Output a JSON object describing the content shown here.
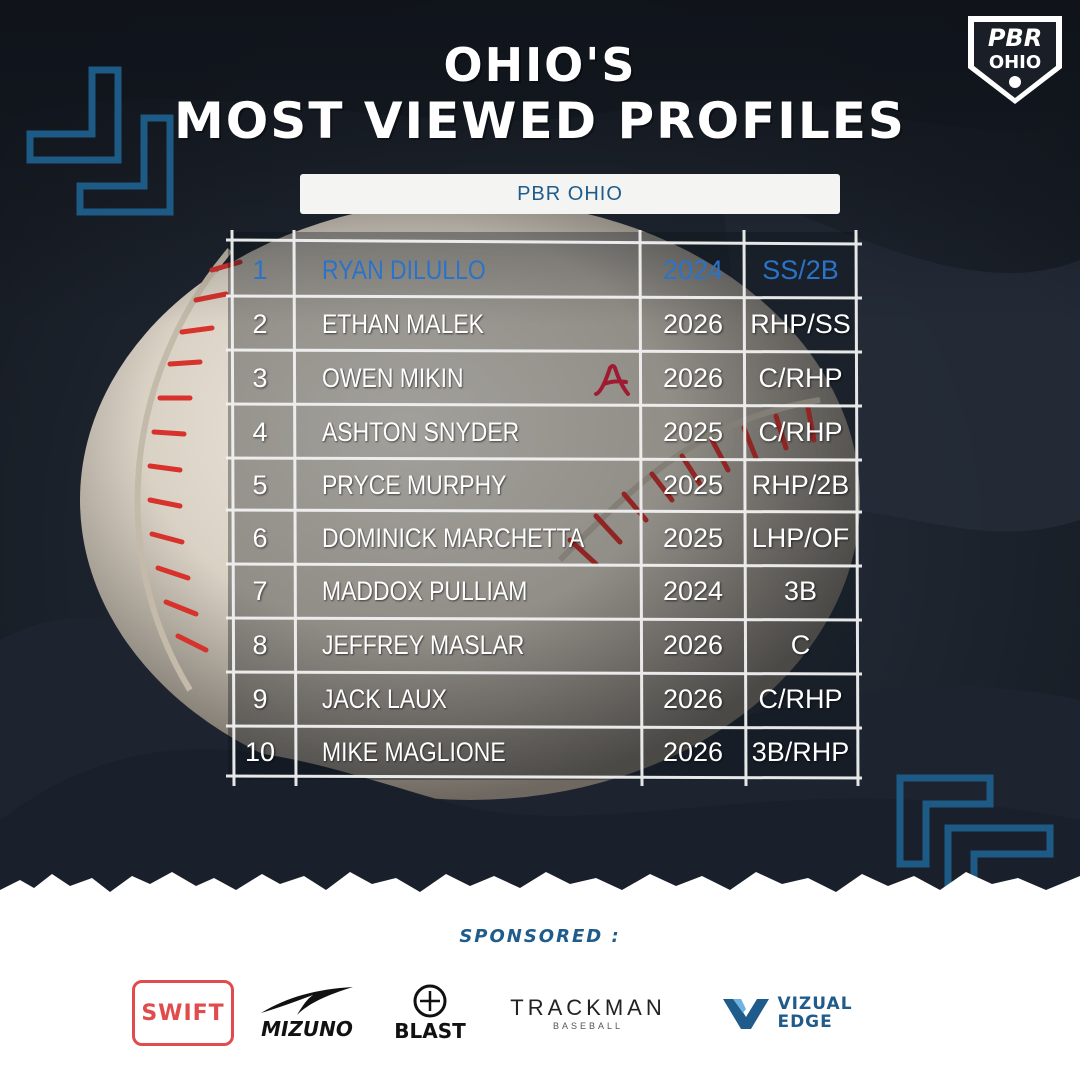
{
  "header": {
    "title_line1": "OHIO'S",
    "title_line2": "MOST VIEWED PROFILES",
    "subtitle": "PBR OHIO",
    "logo_top": "PBR",
    "logo_bottom": "OHIO"
  },
  "table": {
    "rows": [
      {
        "rank": "1",
        "name": "RYAN DILULLO",
        "year": "2024",
        "pos": "SS/2B",
        "highlight": true
      },
      {
        "rank": "2",
        "name": "ETHAN MALEK",
        "year": "2026",
        "pos": "RHP/SS"
      },
      {
        "rank": "3",
        "name": "OWEN MIKIN",
        "year": "2026",
        "pos": "C/RHP",
        "commit_logo": "alabama-a-logo"
      },
      {
        "rank": "4",
        "name": "ASHTON SNYDER",
        "year": "2025",
        "pos": "C/RHP"
      },
      {
        "rank": "5",
        "name": "PRYCE MURPHY",
        "year": "2025",
        "pos": "RHP/2B"
      },
      {
        "rank": "6",
        "name": "DOMINICK MARCHETTA",
        "year": "2025",
        "pos": "LHP/OF"
      },
      {
        "rank": "7",
        "name": "MADDOX PULLIAM",
        "year": "2024",
        "pos": "3B"
      },
      {
        "rank": "8",
        "name": "JEFFREY MASLAR",
        "year": "2026",
        "pos": "C"
      },
      {
        "rank": "9",
        "name": "JACK LAUX",
        "year": "2026",
        "pos": "C/RHP"
      },
      {
        "rank": "10",
        "name": "MIKE MAGLIONE",
        "year": "2026",
        "pos": "3B/RHP"
      }
    ]
  },
  "footer": {
    "sponsored_label": "SPONSORED :",
    "sponsors": {
      "swift": "SWIFT",
      "mizuno": "MIZUNO",
      "blast": "BLAST",
      "trackman": "TRACKMAN",
      "trackman_sub": "BASEBALL",
      "vizual_line1": "VIZUAL",
      "vizual_line2": "EDGE"
    }
  },
  "colors": {
    "accent_blue": "#2a73c9",
    "brand_blue": "#1f5c8c",
    "stitch_red": "#d7322c",
    "alabama_crimson": "#9e1b32"
  }
}
